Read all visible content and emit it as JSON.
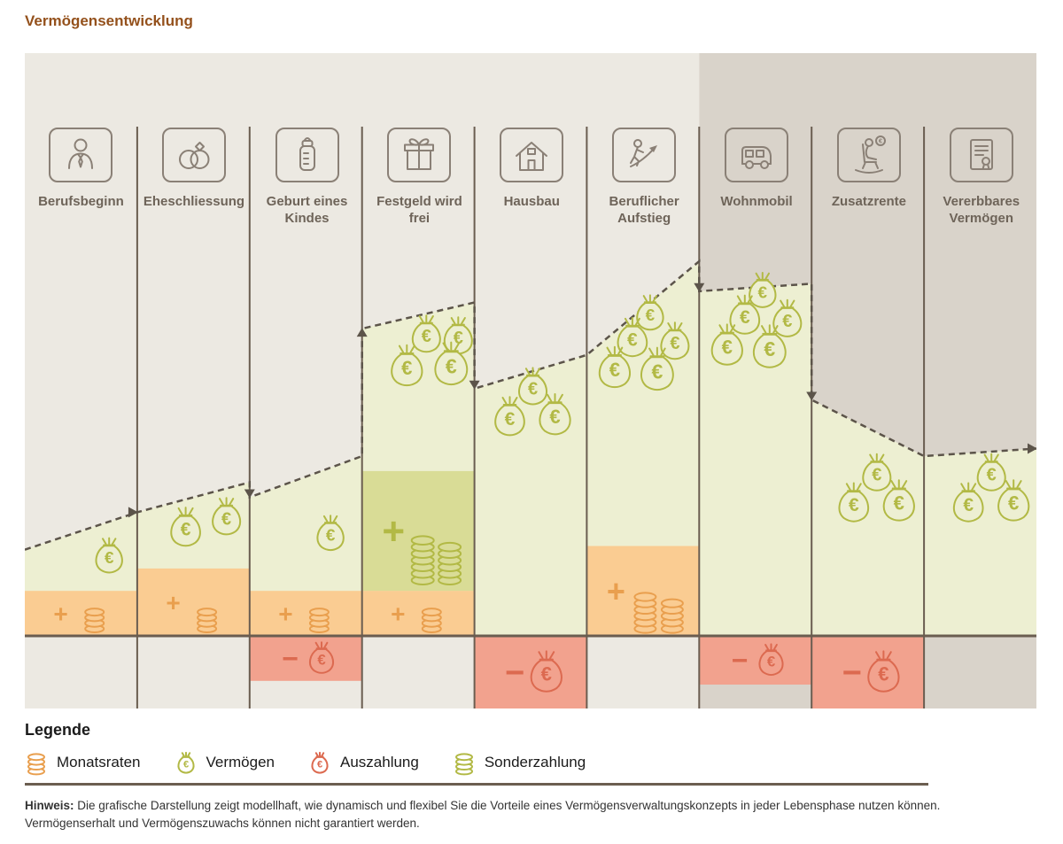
{
  "title": "Vermögensentwicklung",
  "phases": [
    {
      "label": "Berufsbeginn",
      "icon": "person-icon"
    },
    {
      "label": "Eheschliessung",
      "icon": "wedding-rings-icon"
    },
    {
      "label": "Geburt eines Kindes",
      "icon": "baby-bottle-icon"
    },
    {
      "label": "Festgeld wird frei",
      "icon": "gift-icon"
    },
    {
      "label": "Hausbau",
      "icon": "house-icon"
    },
    {
      "label": "Beruflicher Aufstieg",
      "icon": "career-rise-icon"
    },
    {
      "label": "Wohnmobil",
      "icon": "camper-van-icon"
    },
    {
      "label": "Zusatzrente",
      "icon": "rocking-chair-icon"
    },
    {
      "label": "Vererbbares Vermögen",
      "icon": "certificate-icon"
    }
  ],
  "legend": {
    "title": "Legende",
    "items": [
      {
        "label": "Monatsraten",
        "icon": "coin-stack-icon",
        "color": "#E99F4E"
      },
      {
        "label": "Vermögen",
        "icon": "moneybag-icon",
        "color": "#B2B945"
      },
      {
        "label": "Auszahlung",
        "icon": "moneybag-icon",
        "color": "#DC6A50"
      },
      {
        "label": "Sonderzahlung",
        "icon": "coin-stack-icon",
        "color": "#B2B945"
      }
    ]
  },
  "note": {
    "label": "Hinweis:",
    "text": "Die grafische Darstellung zeigt modellhaft, wie dynamisch und flexibel Sie die Vorteile eines Vermögensverwaltungskonzepts in jeder Lebensphase nutzen können. Vermögenserhalt und Vermögenszuwachs können nicht garantiert werden."
  },
  "colors": {
    "title": "#94511C",
    "bg_light": "#ECE9E2",
    "bg_dark": "#D9D3CA",
    "divider": "#6A5D50",
    "dashed_line": "#5C544A",
    "wealth_fill": "#EDEFD2",
    "monatsraten_fill": "#FACC92",
    "monatsraten_icon": "#E99F4E",
    "sonderzahlung_fill": "#D9DC96",
    "sonderzahlung_icon": "#B2B945",
    "auszahlung_fill": "#F2A28E",
    "auszahlung_icon": "#DC6A50",
    "vermoegen_icon": "#B2B945",
    "icon_stroke": "#8A8076",
    "label_color": "#6E6459"
  },
  "chart_data": {
    "type": "area",
    "title": "Vermögensentwicklung",
    "x_categories": [
      "Berufsbeginn",
      "Eheschliessung",
      "Geburt eines Kindes",
      "Festgeld wird frei",
      "Hausbau",
      "Beruflicher Aufstieg",
      "Wohnmobil",
      "Zusatzrente",
      "Vererbbares Vermögen"
    ],
    "value_scale": "relative wealth, 0 = baseline, 100 = peak (no numeric axis shown)",
    "currency_symbol": "€",
    "columns": 9,
    "dark_background_from_column": 6,
    "trend_line": [
      {
        "x": 0,
        "v": 23
      },
      {
        "x": 1,
        "v": 33,
        "arrow": "right"
      },
      {
        "x": 2,
        "v": 41
      },
      {
        "x": 2,
        "v": 37,
        "arrow": "down"
      },
      {
        "x": 3,
        "v": 48
      },
      {
        "x": 3,
        "v": 82,
        "arrow": "up"
      },
      {
        "x": 4,
        "v": 89
      },
      {
        "x": 4,
        "v": 66,
        "arrow": "down"
      },
      {
        "x": 5,
        "v": 75
      },
      {
        "x": 6,
        "v": 100
      },
      {
        "x": 6,
        "v": 92,
        "arrow": "down"
      },
      {
        "x": 7,
        "v": 94
      },
      {
        "x": 7,
        "v": 63,
        "arrow": "down"
      },
      {
        "x": 8,
        "v": 48
      },
      {
        "x": 9,
        "v": 50,
        "arrow": "right"
      }
    ],
    "monatsraten_bars": [
      {
        "col": 0,
        "value": 12,
        "sign": "+",
        "coin_stacks": 1
      },
      {
        "col": 1,
        "value": 18,
        "sign": "+",
        "coin_stacks": 1
      },
      {
        "col": 2,
        "value": 12,
        "sign": "+",
        "coin_stacks": 1
      },
      {
        "col": 3,
        "value": 12,
        "sign": "+",
        "coin_stacks": 1
      },
      {
        "col": 5,
        "value": 24,
        "sign": "+",
        "coin_stacks": 2
      }
    ],
    "sonderzahlung_blocks": [
      {
        "col": 3,
        "from": 12,
        "to": 44,
        "sign": "+",
        "coin_stacks": 2
      }
    ],
    "auszahlung_bars": [
      {
        "col": 2,
        "depth": 12,
        "sign": "−"
      },
      {
        "col": 4,
        "depth": 20,
        "sign": "−"
      },
      {
        "col": 6,
        "depth": 13,
        "sign": "−"
      },
      {
        "col": 7,
        "depth": 20,
        "sign": "−"
      }
    ],
    "vermoegen_bags": [
      {
        "col": 0,
        "count": 1,
        "v_center": 21,
        "x_frac": 0.75
      },
      {
        "col": 1,
        "count": 2,
        "v_center": 30,
        "x_frac": 0.62
      },
      {
        "col": 2,
        "count": 1,
        "v_center": 27,
        "x_frac": 0.72
      },
      {
        "col": 3,
        "count": 4,
        "v_center": 74,
        "x_frac": 0.62
      },
      {
        "col": 4,
        "count": 3,
        "v_center": 60,
        "x_frac": 0.52
      },
      {
        "col": 5,
        "count": 5,
        "v_center": 74,
        "x_frac": 0.5
      },
      {
        "col": 6,
        "count": 5,
        "v_center": 80,
        "x_frac": 0.5
      },
      {
        "col": 7,
        "count": 3,
        "v_center": 37,
        "x_frac": 0.58
      },
      {
        "col": 8,
        "count": 3,
        "v_center": 37,
        "x_frac": 0.6
      }
    ]
  }
}
